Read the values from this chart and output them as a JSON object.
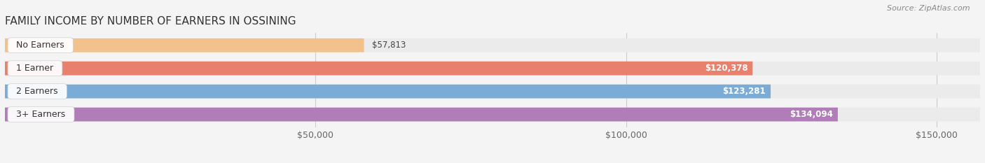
{
  "title": "FAMILY INCOME BY NUMBER OF EARNERS IN OSSINING",
  "source": "Source: ZipAtlas.com",
  "categories": [
    "No Earners",
    "1 Earner",
    "2 Earners",
    "3+ Earners"
  ],
  "values": [
    57813,
    120378,
    123281,
    134094
  ],
  "bar_colors": [
    "#f2c18c",
    "#e8806e",
    "#7aacd6",
    "#b07db8"
  ],
  "value_labels": [
    "$57,813",
    "$120,378",
    "$123,281",
    "$134,094"
  ],
  "x_ticks": [
    50000,
    100000,
    150000
  ],
  "x_tick_labels": [
    "$50,000",
    "$100,000",
    "$150,000"
  ],
  "xlim_data": [
    0,
    157000
  ],
  "background_color": "#f4f4f4",
  "bar_bg_color": "#ebebeb",
  "title_fontsize": 11,
  "source_fontsize": 8,
  "label_fontsize": 9,
  "value_fontsize": 8.5,
  "tick_fontsize": 9
}
